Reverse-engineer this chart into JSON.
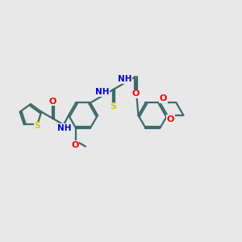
{
  "bg_color": "#e8e8e8",
  "bond_color": "#3d6b6b",
  "atom_colors": {
    "O": "#ff0000",
    "N": "#0000cc",
    "S": "#cccc00",
    "C": "#3d6b6b"
  },
  "line_width": 1.6,
  "font_size": 8.0,
  "figsize": [
    3.0,
    3.0
  ],
  "dpi": 100,
  "xlim": [
    0,
    300
  ],
  "ylim": [
    0,
    300
  ]
}
